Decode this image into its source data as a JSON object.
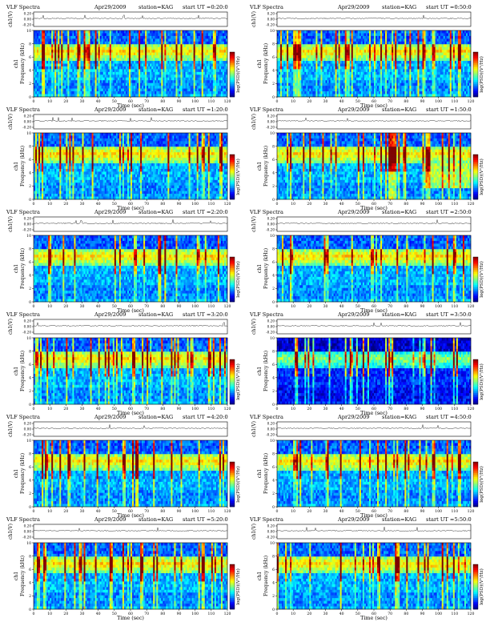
{
  "figure": {
    "rows": 6,
    "cols": 2,
    "colorbar": {
      "colormap": "jet"
    }
  },
  "chart_data": [
    {
      "type": "heatmap",
      "title": "VLF Spectra",
      "date": "Apr29/2009",
      "station": "station=KAG",
      "start_ut": "start UT =0:20:0",
      "channel": "ch1",
      "amp_label": "ch1(V)",
      "amp_ticks": [
        "0.20",
        "0.00",
        "-0.20"
      ],
      "xlabel": "Time (sec)",
      "ylabel": "Frequency (kHz)",
      "colorbar_label": "log(PSD)(V²/Hz)",
      "x_ticks": [
        "0",
        "10",
        "20",
        "30",
        "40",
        "50",
        "60",
        "70",
        "80",
        "90",
        "100",
        "110",
        "120"
      ],
      "y_ticks": [
        "0",
        "2",
        "4",
        "6",
        "8",
        "10"
      ],
      "xlim": [
        0,
        120
      ],
      "ylim": [
        0,
        10
      ]
    },
    {
      "type": "heatmap",
      "title": "VLF Spectra",
      "date": "Apr29/2009",
      "station": "station=KAG",
      "start_ut": "start UT =0:50:0",
      "channel": "ch1",
      "amp_label": "ch1(V)",
      "amp_ticks": [
        "0.20",
        "0.00",
        "-0.20"
      ],
      "xlabel": "Time (sec)",
      "ylabel": "Frequency (kHz)",
      "colorbar_label": "log(PSD)(V²/Hz)",
      "x_ticks": [
        "0",
        "10",
        "20",
        "30",
        "40",
        "50",
        "60",
        "70",
        "80",
        "90",
        "100",
        "110",
        "120"
      ],
      "y_ticks": [
        "0",
        "2",
        "4",
        "6",
        "8",
        "10"
      ],
      "xlim": [
        0,
        120
      ],
      "ylim": [
        0,
        10
      ]
    },
    {
      "type": "heatmap",
      "title": "VLF Spectra",
      "date": "Apr29/2009",
      "station": "station=KAG",
      "start_ut": "start UT =1:20:0",
      "channel": "ch1",
      "amp_label": "ch1(V)",
      "amp_ticks": [
        "0.20",
        "0.00",
        "-0.20"
      ],
      "xlabel": "Time (sec)",
      "ylabel": "Frequency (kHz)",
      "colorbar_label": "log(PSD)(V²/Hz)",
      "x_ticks": [
        "0",
        "10",
        "20",
        "30",
        "40",
        "50",
        "60",
        "70",
        "80",
        "90",
        "100",
        "110",
        "120"
      ],
      "y_ticks": [
        "0",
        "2",
        "4",
        "6",
        "8",
        "10"
      ],
      "xlim": [
        0,
        120
      ],
      "ylim": [
        0,
        10
      ]
    },
    {
      "type": "heatmap",
      "title": "VLF Spectra",
      "date": "Apr29/2009",
      "station": "station=KAG",
      "start_ut": "start UT =1:50:0",
      "channel": "ch1",
      "amp_label": "ch1(V)",
      "amp_ticks": [
        "0.20",
        "0.00",
        "-0.20"
      ],
      "xlabel": "Time (sec)",
      "ylabel": "Frequency (kHz)",
      "colorbar_label": "log(PSD)(V²/Hz)",
      "x_ticks": [
        "0",
        "10",
        "20",
        "30",
        "40",
        "50",
        "60",
        "70",
        "80",
        "90",
        "100",
        "110",
        "120"
      ],
      "y_ticks": [
        "0",
        "2",
        "4",
        "6",
        "8",
        "10"
      ],
      "xlim": [
        0,
        120
      ],
      "ylim": [
        0,
        10
      ]
    },
    {
      "type": "heatmap",
      "title": "VLF Spectra",
      "date": "Apr29/2009",
      "station": "station=KAG",
      "start_ut": "start UT =2:20:0",
      "channel": "ch1",
      "amp_label": "ch1(V)",
      "amp_ticks": [
        "0.20",
        "0.00",
        "-0.20"
      ],
      "xlabel": "Time (sec)",
      "ylabel": "Frequency (kHz)",
      "colorbar_label": "log(PSD)(V²/Hz)",
      "x_ticks": [
        "0",
        "10",
        "20",
        "30",
        "40",
        "50",
        "60",
        "70",
        "80",
        "90",
        "100",
        "110",
        "120"
      ],
      "y_ticks": [
        "0",
        "2",
        "4",
        "6",
        "8",
        "10"
      ],
      "xlim": [
        0,
        120
      ],
      "ylim": [
        0,
        10
      ]
    },
    {
      "type": "heatmap",
      "title": "VLF Spectra",
      "date": "Apr29/2009",
      "station": "station=KAG",
      "start_ut": "start UT =2:50:0",
      "channel": "ch1",
      "amp_label": "ch1(V)",
      "amp_ticks": [
        "0.20",
        "0.00",
        "-0.20"
      ],
      "xlabel": "Time (sec)",
      "ylabel": "Frequency (kHz)",
      "colorbar_label": "log(PSD)(V²/Hz)",
      "x_ticks": [
        "0",
        "10",
        "20",
        "30",
        "40",
        "50",
        "60",
        "70",
        "80",
        "90",
        "100",
        "110",
        "120"
      ],
      "y_ticks": [
        "0",
        "2",
        "4",
        "6",
        "8",
        "10"
      ],
      "xlim": [
        0,
        120
      ],
      "ylim": [
        0,
        10
      ]
    },
    {
      "type": "heatmap",
      "title": "VLF Spectra",
      "date": "Apr29/2009",
      "station": "station=KAG",
      "start_ut": "start UT =3:20:0",
      "channel": "ch1",
      "amp_label": "ch1(V)",
      "amp_ticks": [
        "0.20",
        "0.00",
        "-0.20"
      ],
      "xlabel": "Time (sec)",
      "ylabel": "Frequency (kHz)",
      "colorbar_label": "log(PSD)(V²/Hz)",
      "x_ticks": [
        "0",
        "10",
        "20",
        "30",
        "40",
        "50",
        "60",
        "70",
        "80",
        "90",
        "100",
        "110",
        "120"
      ],
      "y_ticks": [
        "0",
        "2",
        "4",
        "6",
        "8",
        "10"
      ],
      "xlim": [
        0,
        120
      ],
      "ylim": [
        0,
        10
      ]
    },
    {
      "type": "heatmap",
      "title": "VLF Spectra",
      "date": "Apr29/2009",
      "station": "station=KAG",
      "start_ut": "start UT =3:50:0",
      "channel": "ch1",
      "amp_label": "ch1(V)",
      "amp_ticks": [
        "0.20",
        "0.00",
        "-0.20"
      ],
      "xlabel": "Time (sec)",
      "ylabel": "Frequency (kHz)",
      "colorbar_label": "log(PSD)(V²/Hz)",
      "x_ticks": [
        "0",
        "10",
        "20",
        "30",
        "40",
        "50",
        "60",
        "70",
        "80",
        "90",
        "100",
        "110",
        "120"
      ],
      "y_ticks": [
        "0",
        "2",
        "4",
        "6",
        "8",
        "10"
      ],
      "xlim": [
        0,
        120
      ],
      "ylim": [
        0,
        10
      ]
    },
    {
      "type": "heatmap",
      "title": "VLF Spectra",
      "date": "Apr29/2009",
      "station": "station=KAG",
      "start_ut": "start UT =4:20:0",
      "channel": "ch1",
      "amp_label": "ch1(V)",
      "amp_ticks": [
        "0.20",
        "0.00",
        "-0.20"
      ],
      "xlabel": "Time (sec)",
      "ylabel": "Frequency (kHz)",
      "colorbar_label": "log(PSD)(V²/Hz)",
      "x_ticks": [
        "0",
        "10",
        "20",
        "30",
        "40",
        "50",
        "60",
        "70",
        "80",
        "90",
        "100",
        "110",
        "120"
      ],
      "y_ticks": [
        "0",
        "2",
        "4",
        "6",
        "8",
        "10"
      ],
      "xlim": [
        0,
        120
      ],
      "ylim": [
        0,
        10
      ]
    },
    {
      "type": "heatmap",
      "title": "VLF Spectra",
      "date": "Apr29/2009",
      "station": "station=KAG",
      "start_ut": "start UT =4:50:0",
      "channel": "ch1",
      "amp_label": "ch1(V)",
      "amp_ticks": [
        "0.20",
        "0.00",
        "-0.20"
      ],
      "xlabel": "Time (sec)",
      "ylabel": "Frequency (kHz)",
      "colorbar_label": "log(PSD)(V²/Hz)",
      "x_ticks": [
        "0",
        "10",
        "20",
        "30",
        "40",
        "50",
        "60",
        "70",
        "80",
        "90",
        "100",
        "110",
        "120"
      ],
      "y_ticks": [
        "0",
        "2",
        "4",
        "6",
        "8",
        "10"
      ],
      "xlim": [
        0,
        120
      ],
      "ylim": [
        0,
        10
      ]
    },
    {
      "type": "heatmap",
      "title": "VLF Spectra",
      "date": "Apr29/2009",
      "station": "station=KAG",
      "start_ut": "start UT =5:20:0",
      "channel": "ch1",
      "amp_label": "ch1(V)",
      "amp_ticks": [
        "0.20",
        "0.00",
        "-0.20"
      ],
      "xlabel": "Time (sec)",
      "ylabel": "Frequency (kHz)",
      "colorbar_label": "log(PSD)(V²/Hz)",
      "x_ticks": [
        "0",
        "10",
        "20",
        "30",
        "40",
        "50",
        "60",
        "70",
        "80",
        "90",
        "100",
        "110",
        "120"
      ],
      "y_ticks": [
        "0",
        "2",
        "4",
        "6",
        "8",
        "10"
      ],
      "xlim": [
        0,
        120
      ],
      "ylim": [
        0,
        10
      ]
    },
    {
      "type": "heatmap",
      "title": "VLF Spectra",
      "date": "Apr29/2009",
      "station": "station=KAG",
      "start_ut": "start UT =5:50:0",
      "channel": "ch1",
      "amp_label": "ch1(V)",
      "amp_ticks": [
        "0.20",
        "0.00",
        "-0.20"
      ],
      "xlabel": "Time (sec)",
      "ylabel": "Frequency (kHz)",
      "colorbar_label": "log(PSD)(V²/Hz)",
      "x_ticks": [
        "0",
        "10",
        "20",
        "30",
        "40",
        "50",
        "60",
        "70",
        "80",
        "90",
        "100",
        "110",
        "120"
      ],
      "y_ticks": [
        "0",
        "2",
        "4",
        "6",
        "8",
        "10"
      ],
      "xlim": [
        0,
        120
      ],
      "ylim": [
        0,
        10
      ]
    }
  ]
}
